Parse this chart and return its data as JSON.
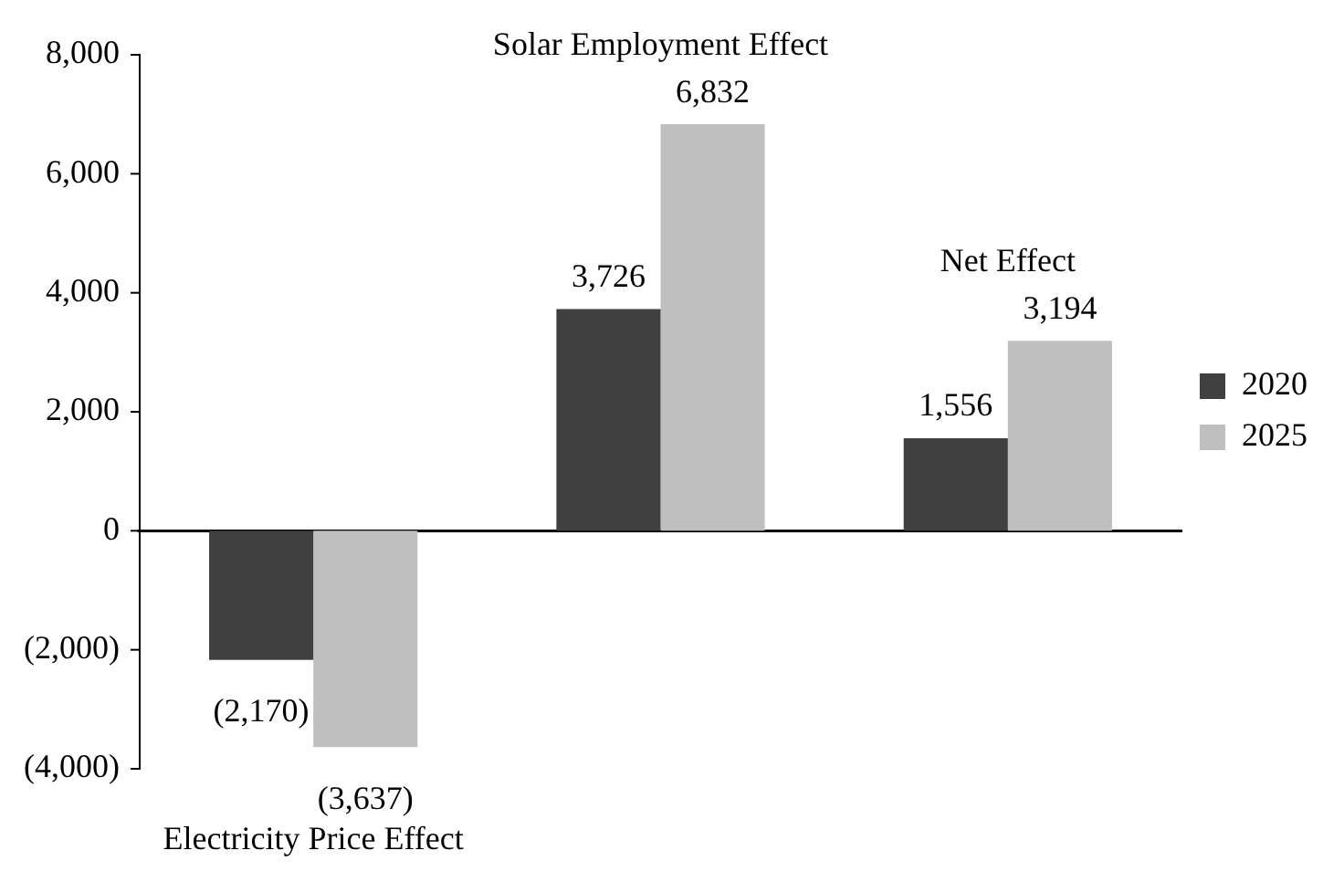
{
  "chart_data": {
    "type": "bar",
    "categories": [
      "Electricity Price Effect",
      "Solar Employment Effect",
      "Net Effect"
    ],
    "series": [
      {
        "name": "2020",
        "color": "#404040",
        "values": [
          -2170,
          3726,
          1556
        ],
        "value_labels": [
          "(2,170)",
          "3,726",
          "1,556"
        ]
      },
      {
        "name": "2025",
        "color": "#bfbfbf",
        "values": [
          -3637,
          6832,
          3194
        ],
        "value_labels": [
          "(3,637)",
          "6,832",
          "3,194"
        ]
      }
    ],
    "ylim": [
      -4000,
      8000
    ],
    "yticks": [
      {
        "value": -4000,
        "label": "(4,000)"
      },
      {
        "value": -2000,
        "label": "(2,000)"
      },
      0,
      {
        "value": 2000,
        "label": "2,000"
      },
      {
        "value": 4000,
        "label": "4,000"
      },
      {
        "value": 6000,
        "label": "6,000"
      },
      {
        "value": 8000,
        "label": "8,000"
      }
    ],
    "legend": "right"
  }
}
